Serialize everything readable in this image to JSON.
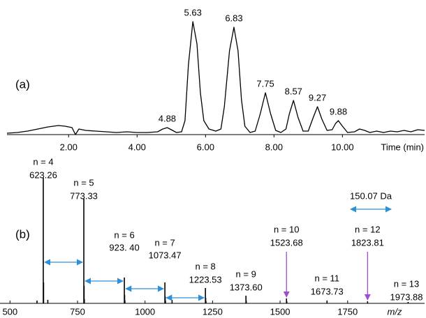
{
  "chart_data": [
    {
      "type": "line",
      "panel_label": "(a)",
      "x_label": "Time (min)",
      "color": "#000000",
      "x": [
        0.2,
        0.5,
        0.8,
        1.1,
        1.4,
        1.7,
        1.9,
        2.1,
        2.2,
        2.3,
        2.5,
        2.8,
        3.1,
        3.4,
        3.7,
        4.0,
        4.3,
        4.6,
        4.75,
        4.88,
        5.0,
        5.15,
        5.3,
        5.4,
        5.5,
        5.63,
        5.75,
        5.85,
        5.95,
        6.1,
        6.3,
        6.45,
        6.55,
        6.7,
        6.83,
        6.95,
        7.05,
        7.15,
        7.3,
        7.45,
        7.6,
        7.75,
        7.9,
        8.05,
        8.2,
        8.35,
        8.45,
        8.57,
        8.7,
        8.85,
        9.0,
        9.15,
        9.27,
        9.4,
        9.55,
        9.7,
        9.8,
        9.88,
        10.0,
        10.15,
        10.35,
        10.5,
        10.65,
        10.8,
        11.0,
        11.2,
        11.4,
        11.6,
        11.8,
        12.0,
        12.2,
        12.4
      ],
      "values": [
        2,
        3,
        5,
        8,
        11,
        13,
        12,
        10,
        0,
        8,
        6,
        5,
        4,
        3,
        4,
        3,
        3,
        4,
        8,
        10,
        7,
        3,
        4,
        20,
        100,
        162,
        130,
        60,
        20,
        8,
        5,
        8,
        40,
        120,
        154,
        120,
        50,
        12,
        3,
        5,
        30,
        60,
        30,
        6,
        3,
        8,
        30,
        49,
        25,
        5,
        5,
        25,
        40,
        22,
        6,
        7,
        16,
        20,
        12,
        3,
        4,
        8,
        6,
        3,
        5,
        3,
        5,
        4,
        6,
        4,
        7,
        6
      ],
      "xlim": [
        0.2,
        12.4
      ],
      "ylim": [
        0,
        170
      ],
      "xticks": [
        {
          "value": 2,
          "label": "2.00"
        },
        {
          "value": 4,
          "label": "4.00"
        },
        {
          "value": 6,
          "label": "6.00"
        },
        {
          "value": 8,
          "label": "8.00"
        },
        {
          "value": 10,
          "label": "10.00"
        }
      ],
      "peak_labels": [
        4.88,
        5.63,
        6.83,
        7.75,
        8.57,
        9.27,
        9.88
      ]
    },
    {
      "type": "stick",
      "panel_label": "(b)",
      "x_label": "m/z",
      "color": "#000000",
      "x": [
        600,
        623.26,
        624.3,
        640,
        773.33,
        774.3,
        775.3,
        923.4,
        924.4,
        925.4,
        1073.47,
        1074.5,
        1075.5,
        1100,
        1223.53,
        1224.5,
        1225.5,
        1373.6,
        1374.6,
        1523.68,
        1524.7,
        1673.73,
        1823.81,
        1973.88
      ],
      "values": [
        4,
        180,
        30,
        5,
        150,
        25,
        6,
        37,
        12,
        4,
        30,
        10,
        4,
        5,
        22,
        8,
        3,
        11,
        4,
        7,
        3,
        4,
        3,
        2
      ],
      "xlim": [
        463,
        2035
      ],
      "ylim": [
        0,
        185
      ],
      "xticks": [
        500,
        750,
        1000,
        1250,
        1500,
        1750
      ],
      "spacing_label": "150.07 Da",
      "spacing_color": "#2f8fd6",
      "highlight_color": "#9b4fd0",
      "annotations": [
        {
          "n": "n = 4",
          "mz": {
            "value": 623.26,
            "label": "623.26"
          },
          "spacing_to_next": true
        },
        {
          "n": "n = 5",
          "mz": {
            "value": 773.33,
            "label": "773.33"
          },
          "spacing_to_next": true
        },
        {
          "n": "n = 6",
          "mz": {
            "value": 923.4,
            "label": "923. 40"
          },
          "spacing_to_next": true
        },
        {
          "n": "n = 7",
          "mz": {
            "value": 1073.47,
            "label": "1073.47"
          },
          "spacing_to_next": true
        },
        {
          "n": "n = 8",
          "mz": {
            "value": 1223.53,
            "label": "1223.53"
          }
        },
        {
          "n": "n = 9",
          "mz": {
            "value": 1373.6,
            "label": "1373.60"
          }
        },
        {
          "n": "n = 10",
          "mz": {
            "value": 1523.68,
            "label": "1523.68"
          },
          "highlight": true
        },
        {
          "n": "n = 11",
          "mz": {
            "value": 1673.73,
            "label": "1673.73"
          }
        },
        {
          "n": "n = 12",
          "mz": {
            "value": 1823.81,
            "label": "1823.81"
          },
          "highlight": true
        },
        {
          "n": "n = 13",
          "mz": {
            "value": 1973.88,
            "label": "1973.88"
          }
        }
      ]
    }
  ]
}
